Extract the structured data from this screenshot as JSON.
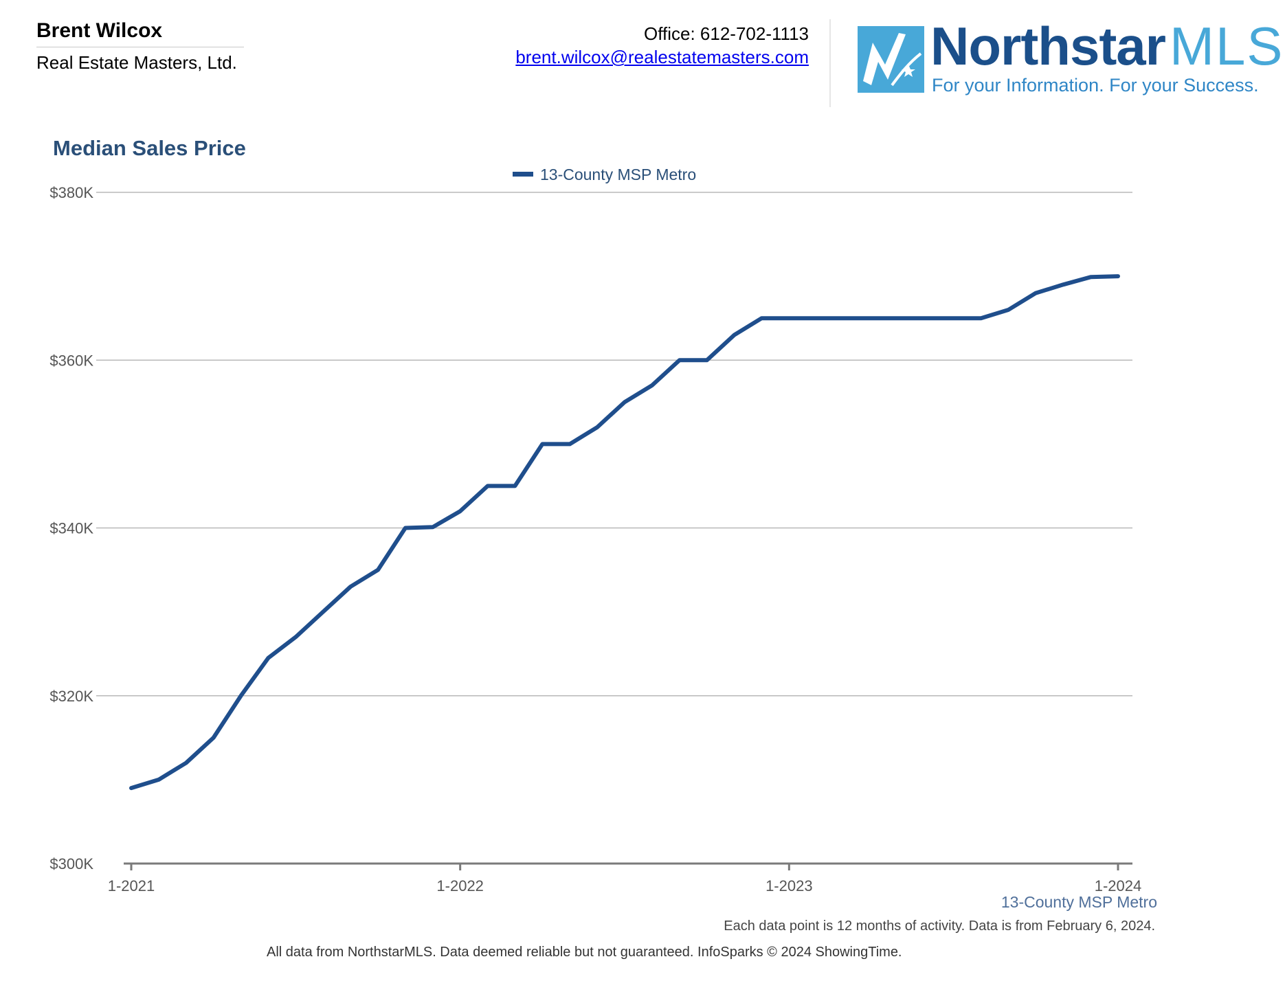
{
  "agent": {
    "name": "Brent Wilcox",
    "company": "Real Estate Masters, Ltd.",
    "office": "Office: 612-702-1113",
    "email": "brent.wilcox@realestatemasters.com"
  },
  "logo": {
    "name_part1": "Northstar",
    "name_part2": "MLS",
    "tagline": "For your Information. For your Success."
  },
  "colors": {
    "series": "#1f4e8c",
    "title": "#2a4f78",
    "grid": "#b8b8b8",
    "axis": "#7a7a7a"
  },
  "chart_data": {
    "type": "line",
    "title": "Median Sales Price",
    "legend_position": "top-center",
    "grid": true,
    "x_labels": [
      "1-2021",
      "1-2022",
      "1-2023",
      "1-2024"
    ],
    "ylim": [
      300000,
      380000
    ],
    "y_ticks": [
      300000,
      320000,
      340000,
      360000,
      380000
    ],
    "y_tick_labels": [
      "$300K",
      "$320K",
      "$340K",
      "$360K",
      "$380K"
    ],
    "x": [
      "2021-01",
      "2021-02",
      "2021-03",
      "2021-04",
      "2021-05",
      "2021-06",
      "2021-07",
      "2021-08",
      "2021-09",
      "2021-10",
      "2021-11",
      "2021-12",
      "2022-01",
      "2022-02",
      "2022-03",
      "2022-04",
      "2022-05",
      "2022-06",
      "2022-07",
      "2022-08",
      "2022-09",
      "2022-10",
      "2022-11",
      "2022-12",
      "2023-01",
      "2023-02",
      "2023-03",
      "2023-04",
      "2023-05",
      "2023-06",
      "2023-07",
      "2023-08",
      "2023-09",
      "2023-10",
      "2023-11",
      "2023-12",
      "2024-01"
    ],
    "series": [
      {
        "name": "13-County MSP Metro",
        "values": [
          309000,
          310000,
          312000,
          315000,
          320000,
          324500,
          327000,
          330000,
          333000,
          335000,
          340000,
          340100,
          342000,
          345000,
          345000,
          350000,
          350000,
          352000,
          355000,
          357000,
          360000,
          360000,
          363000,
          365000,
          365000,
          365000,
          365000,
          365000,
          365000,
          365000,
          365000,
          365000,
          366000,
          368000,
          369000,
          369900,
          370000
        ]
      }
    ],
    "series_caption": "13-County MSP Metro",
    "note": "Each data point is 12 months of activity. Data is from February 6, 2024."
  },
  "footer": {
    "disclaimer": "All data from NorthstarMLS. Data deemed reliable but not guaranteed. InfoSparks © 2024 ShowingTime."
  }
}
